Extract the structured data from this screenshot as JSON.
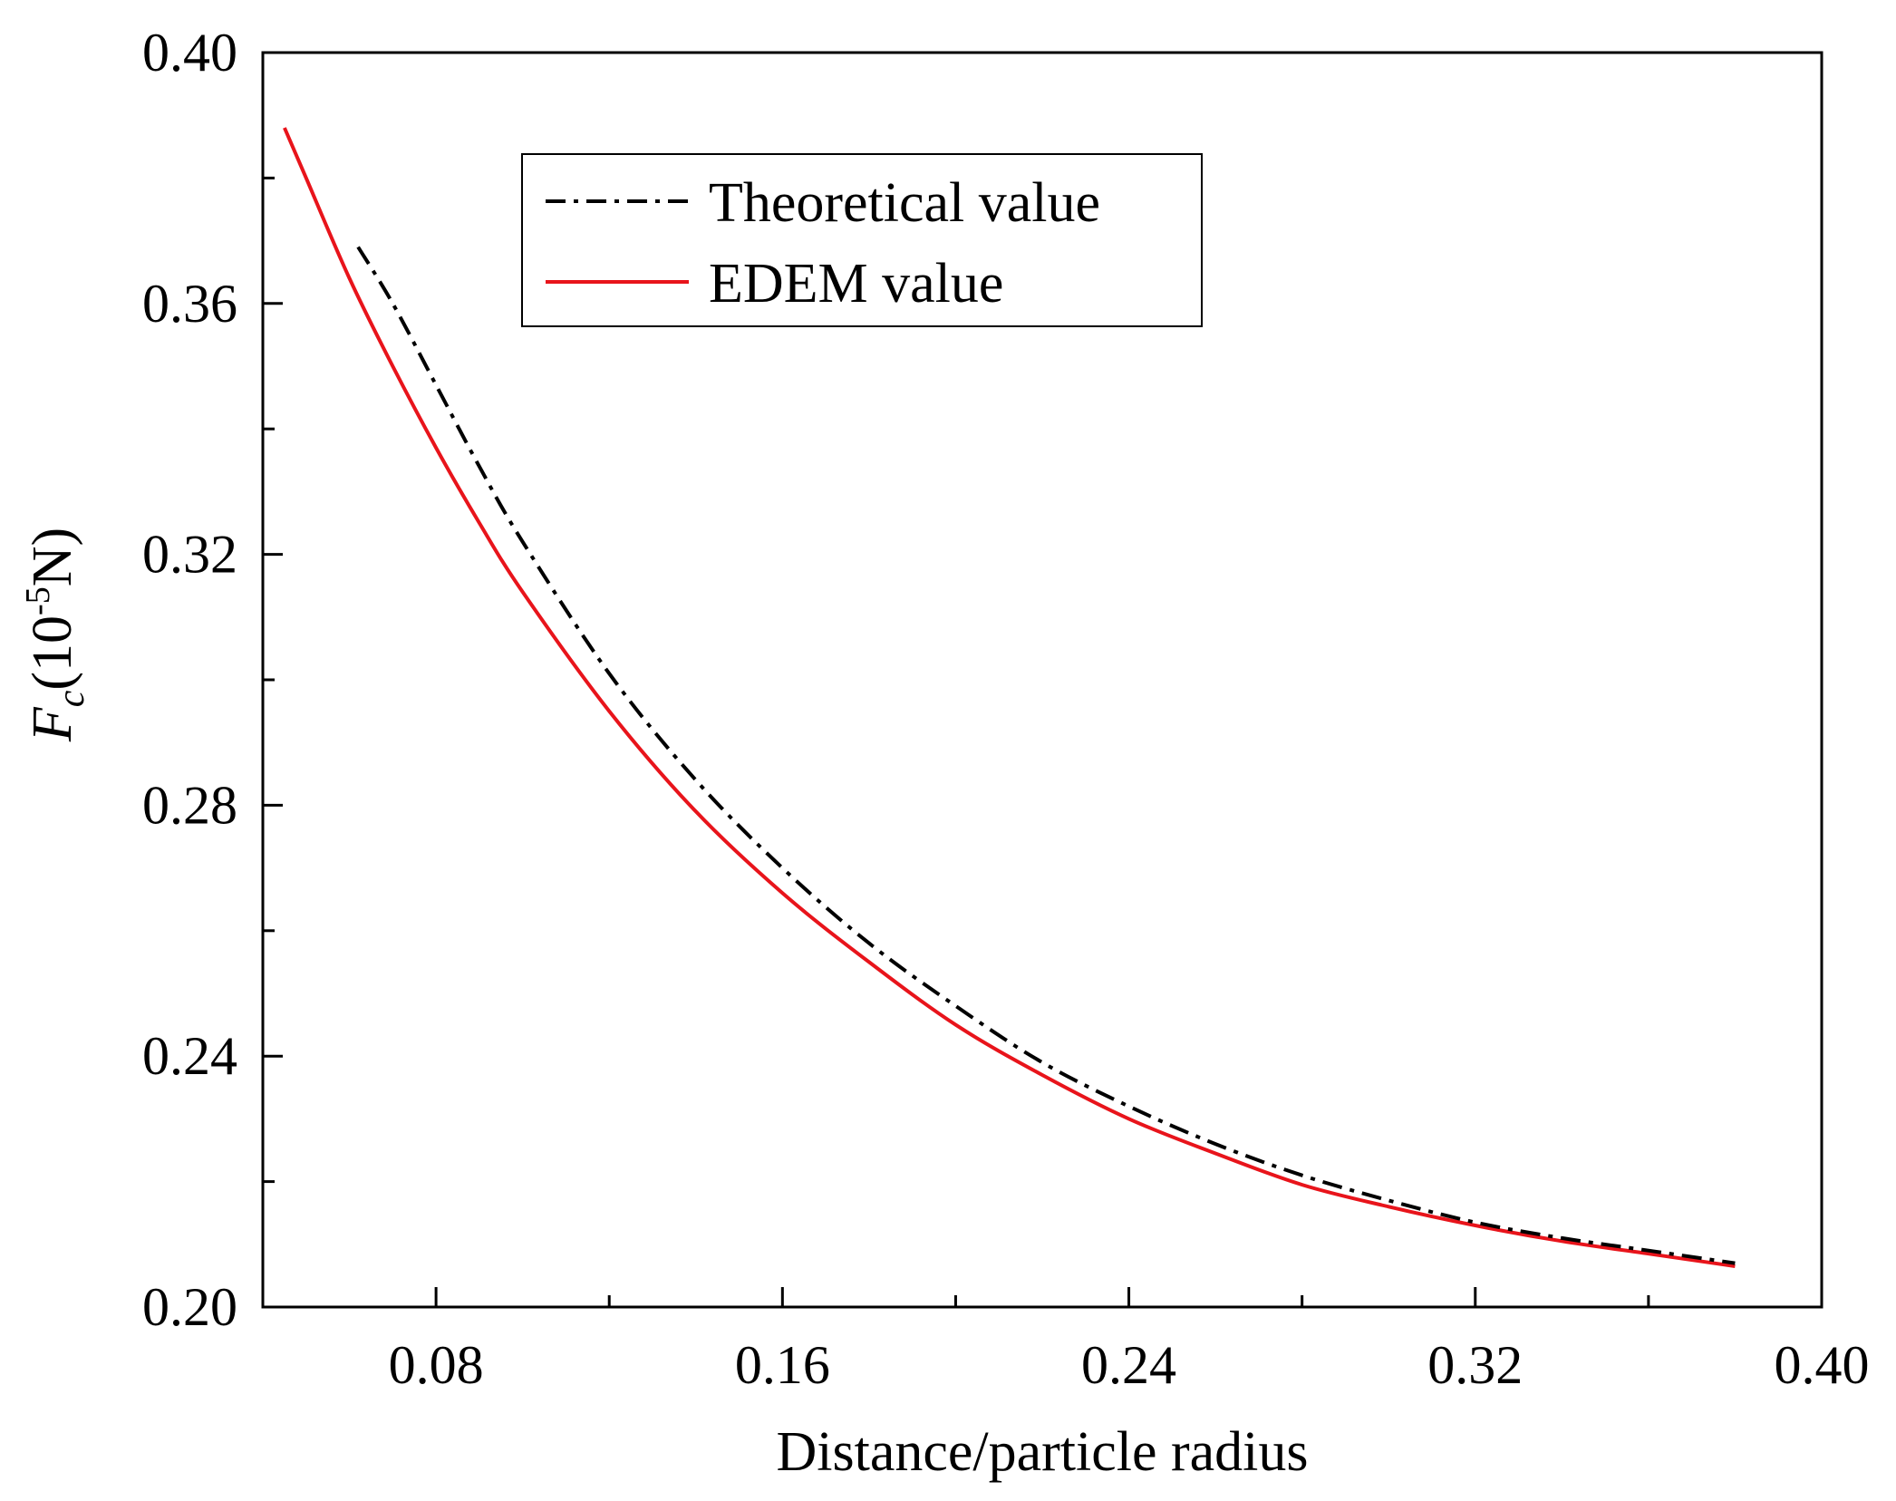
{
  "chart_data": {
    "type": "line",
    "title": "",
    "xlabel": "Distance/particle radius",
    "ylabel": {
      "symbol": "F",
      "subscript": "c",
      "unit_open": "(10",
      "exponent": "-5",
      "unit_close": "N)"
    },
    "xlim": [
      0.04,
      0.4
    ],
    "ylim": [
      0.2,
      0.4
    ],
    "x_ticks": [
      0.08,
      0.16,
      0.24,
      0.32,
      0.4
    ],
    "x_tick_labels": [
      "0.08",
      "0.16",
      "0.24",
      "0.32",
      "0.40"
    ],
    "x_minor_ticks": [
      0.12,
      0.2,
      0.28,
      0.36
    ],
    "y_ticks": [
      0.2,
      0.24,
      0.28,
      0.32,
      0.36,
      0.4
    ],
    "y_tick_labels": [
      "0.20",
      "0.24",
      "0.28",
      "0.32",
      "0.36",
      "0.40"
    ],
    "y_minor_ticks": [
      0.22,
      0.26,
      0.3,
      0.34,
      0.38
    ],
    "grid": false,
    "legend_position": "top-center",
    "series": [
      {
        "name": "Theoretical value",
        "color": "#000000",
        "style": "dash-dot",
        "x": [
          0.062,
          0.07,
          0.08,
          0.09,
          0.1,
          0.12,
          0.14,
          0.16,
          0.18,
          0.2,
          0.22,
          0.24,
          0.26,
          0.28,
          0.3,
          0.32,
          0.34,
          0.36,
          0.38
        ],
        "y": [
          0.369,
          0.36,
          0.347,
          0.334,
          0.322,
          0.301,
          0.284,
          0.27,
          0.258,
          0.248,
          0.239,
          0.232,
          0.226,
          0.221,
          0.217,
          0.2135,
          0.211,
          0.209,
          0.207
        ]
      },
      {
        "name": "EDEM value",
        "color": "#e8141b",
        "style": "solid",
        "x": [
          0.045,
          0.05,
          0.06,
          0.07,
          0.08,
          0.09,
          0.1,
          0.12,
          0.14,
          0.16,
          0.18,
          0.2,
          0.22,
          0.24,
          0.26,
          0.28,
          0.3,
          0.32,
          0.34,
          0.36,
          0.38
        ],
        "y": [
          0.388,
          0.38,
          0.364,
          0.35,
          0.337,
          0.325,
          0.314,
          0.295,
          0.279,
          0.266,
          0.255,
          0.245,
          0.237,
          0.23,
          0.2245,
          0.2195,
          0.216,
          0.213,
          0.2105,
          0.2085,
          0.2065
        ]
      }
    ]
  }
}
